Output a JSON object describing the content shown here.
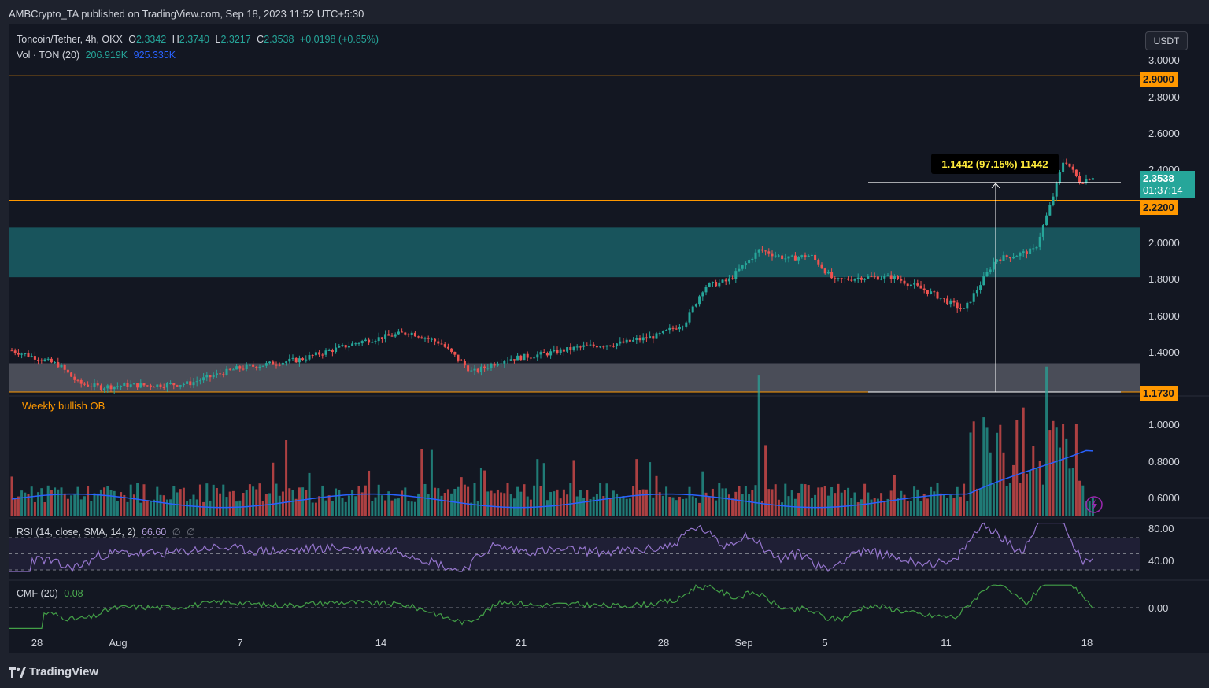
{
  "publisher": "AMBCrypto_TA published on TradingView.com, Sep 18, 2023 11:52 UTC+5:30",
  "legend": {
    "symbol": "Toncoin/Tether, 4h, OKX",
    "open_label": "O",
    "open": "2.3342",
    "high_label": "H",
    "high": "2.3740",
    "low_label": "L",
    "low": "2.3217",
    "close_label": "C",
    "close": "2.3538",
    "change": "+0.0198 (+0.85%)",
    "vol_label": "Vol · TON (20)",
    "vol1": "206.919K",
    "vol2": "925.335K",
    "rsi_label": "RSI (14, close, SMA, 14, 2)",
    "rsi_value": "66.60",
    "rsi_x1": "∅",
    "rsi_x2": "∅",
    "cmf_label": "CMF (20)",
    "cmf_value": "0.08"
  },
  "currency_button": "USDT",
  "price_axis": [
    "3.0000",
    "2.8000",
    "2.6000",
    "2.4000",
    "2.0000",
    "1.8000",
    "1.6000",
    "1.4000"
  ],
  "volume_axis": [
    "1.0000",
    "0.8000",
    "0.6000"
  ],
  "rsi_axis": [
    "80.00",
    "40.00"
  ],
  "cmf_axis": [
    "0.00"
  ],
  "badges": {
    "level_top": "2.9000",
    "level_mid": "2.2200",
    "level_low": "1.1730",
    "last_price": "2.3538",
    "countdown": "01:37:14"
  },
  "ob_label": "Weekly bullish OB",
  "measure_label": "1.1442 (97.15%) 11442",
  "x_axis": [
    "28",
    "Aug",
    "7",
    "14",
    "21",
    "28",
    "Sep",
    "5",
    "11",
    "18"
  ],
  "brand": "TradingView",
  "colors": {
    "up": "#26a69a",
    "down": "#ef5350",
    "level": "#ff9800",
    "ob_zone": "#1a5f66",
    "low_zone": "#5d606b",
    "vol_ma": "#2962ff",
    "rsi": "#9575cd",
    "cmf": "#43a047"
  },
  "chart_data": [
    {
      "type": "line",
      "title": "Toncoin/Tether, 4h, OKX",
      "description_series": "close",
      "x": [
        "Jul 27",
        "Jul 28",
        "Jul 29",
        "Jul 31",
        "Aug 2",
        "Aug 5",
        "Aug 7",
        "Aug 9",
        "Aug 11",
        "Aug 13",
        "Aug 14",
        "Aug 16",
        "Aug 18",
        "Aug 19",
        "Aug 21",
        "Aug 23",
        "Aug 25",
        "Aug 27",
        "Aug 28",
        "Aug 29",
        "Aug 30",
        "Sep 1",
        "Sep 2",
        "Sep 3",
        "Sep 4",
        "Sep 5",
        "Sep 6",
        "Sep 8",
        "Sep 10",
        "Sep 11",
        "Sep 12",
        "Sep 13",
        "Sep 14",
        "Sep 15",
        "Sep 16",
        "Sep 17",
        "Sep 18"
      ],
      "series": [
        {
          "name": "Toncoin/Tether",
          "values": [
            1.4,
            1.36,
            1.32,
            1.22,
            1.2,
            1.21,
            1.21,
            1.22,
            1.3,
            1.35,
            1.45,
            1.5,
            1.44,
            1.28,
            1.35,
            1.38,
            1.42,
            1.44,
            1.48,
            1.55,
            1.75,
            1.78,
            1.95,
            1.9,
            1.92,
            1.78,
            1.8,
            1.8,
            1.72,
            1.62,
            1.9,
            1.92,
            1.95,
            2.2,
            2.45,
            2.32,
            2.3538
          ]
        }
      ],
      "ylim": [
        1.173,
        3.0
      ],
      "levels": [
        2.9,
        2.22,
        1.173
      ],
      "zones": [
        {
          "name": "Weekly bullish OB",
          "from": 1.8,
          "to": 2.07
        },
        {
          "from": 1.173,
          "to": 1.33
        }
      ],
      "measure": {
        "from": 1.173,
        "to": 2.3172,
        "label": "1.1442 (97.15%) 11442"
      }
    },
    {
      "type": "bar",
      "title": "Vol · TON (20)",
      "last_values": [
        206.919,
        925.335
      ],
      "unit": "K",
      "ylim": [
        0.5,
        1.05
      ]
    },
    {
      "type": "line",
      "title": "RSI (14, close, SMA, 14, 2)",
      "last_value": 66.6,
      "levels": [
        70,
        30
      ],
      "ylim": [
        25,
        95
      ]
    },
    {
      "type": "line",
      "title": "CMF (20)",
      "last_value": 0.08,
      "levels": [
        0.0
      ],
      "ylim": [
        -0.3,
        0.35
      ]
    }
  ]
}
